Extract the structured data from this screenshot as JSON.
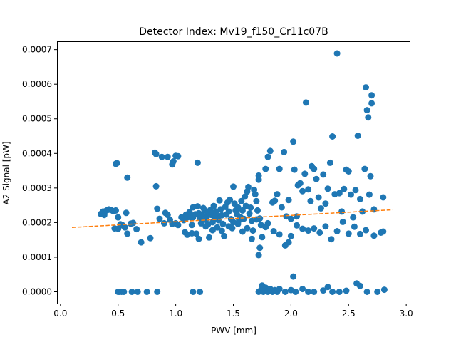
{
  "chart_data": {
    "type": "scatter",
    "title": "Detector Index: Mv19_f150_Cr11c07B",
    "xlabel": "PWV [mm]",
    "ylabel": "A2 Signal [pW]",
    "xlim": [
      -0.03,
      3.03
    ],
    "ylim": [
      -3.4e-05,
      0.000724
    ],
    "x_ticks": [
      "0.0",
      "0.5",
      "1.0",
      "1.5",
      "2.0",
      "2.5",
      "3.0"
    ],
    "y_ticks": [
      "0.0000",
      "0.0001",
      "0.0002",
      "0.0003",
      "0.0004",
      "0.0005",
      "0.0006",
      "0.0007"
    ],
    "grid": false,
    "colors": {
      "points": "#1f77b4",
      "fit": "#ff7f0e"
    },
    "series": [
      {
        "type": "scatter",
        "points": [
          [
            0.48,
            0.00037
          ],
          [
            0.49,
            0.000372
          ],
          [
            0.58,
            0.00033
          ],
          [
            0.82,
            0.000402
          ],
          [
            0.83,
            0.000398
          ],
          [
            0.88,
            0.00039
          ],
          [
            0.93,
            0.00039
          ],
          [
            0.97,
            0.000368
          ],
          [
            1.0,
            0.000393
          ],
          [
            1.02,
            0.000392
          ],
          [
            0.98,
            0.000377
          ],
          [
            1.19,
            0.000373
          ],
          [
            0.83,
            0.000305
          ],
          [
            0.35,
            0.000225
          ],
          [
            0.37,
            0.000232
          ],
          [
            0.38,
            0.000222
          ],
          [
            0.4,
            0.000235
          ],
          [
            0.42,
            0.000238
          ],
          [
            0.44,
            0.000236
          ],
          [
            0.46,
            0.000233
          ],
          [
            0.48,
            0.000235
          ],
          [
            0.5,
            0.000215
          ],
          [
            0.47,
            0.000183
          ],
          [
            0.5,
            0.000182
          ],
          [
            0.52,
            0.000195
          ],
          [
            0.54,
            0.000192
          ],
          [
            0.56,
            0.000186
          ],
          [
            0.57,
            0.000228
          ],
          [
            0.58,
            0.000168
          ],
          [
            0.61,
            0.000197
          ],
          [
            0.63,
            0.000199
          ],
          [
            0.66,
            0.000181
          ],
          [
            0.7,
            0.000143
          ],
          [
            0.78,
            0.000155
          ],
          [
            0.84,
            0.00024
          ],
          [
            0.86,
            0.000211
          ],
          [
            0.9,
            0.000198
          ],
          [
            0.91,
            0.000228
          ],
          [
            0.93,
            0.000222
          ],
          [
            0.95,
            0.000208
          ],
          [
            0.97,
            0.000196
          ],
          [
            1.0,
            0.000198
          ],
          [
            1.02,
            0.000193
          ],
          [
            0.5,
            0.0
          ],
          [
            0.51,
            0.0
          ],
          [
            0.53,
            0.0
          ],
          [
            0.55,
            0.0
          ],
          [
            0.62,
            0.0
          ],
          [
            0.67,
            0.0
          ],
          [
            0.75,
            0.0
          ],
          [
            0.84,
            0.0
          ],
          [
            1.15,
            0.0
          ],
          [
            1.21,
            0.0
          ],
          [
            1.05,
            0.000215
          ],
          [
            1.07,
            0.000207
          ],
          [
            1.09,
            0.000223
          ],
          [
            1.1,
            0.000215
          ],
          [
            1.1,
            0.000165
          ],
          [
            1.12,
            0.00023
          ],
          [
            1.13,
            0.000215
          ],
          [
            1.14,
            0.000193
          ],
          [
            1.15,
            0.000244
          ],
          [
            1.15,
            0.000215
          ],
          [
            1.17,
            0.000224
          ],
          [
            1.18,
            0.000168
          ],
          [
            1.19,
            0.000247
          ],
          [
            1.2,
            0.000227
          ],
          [
            1.21,
            0.000213
          ],
          [
            1.22,
            0.000198
          ],
          [
            1.23,
            0.000222
          ],
          [
            1.24,
            0.000242
          ],
          [
            1.25,
            0.000235
          ],
          [
            1.26,
            0.000208
          ],
          [
            1.27,
            0.000217
          ],
          [
            1.28,
            0.00023
          ],
          [
            1.28,
            0.000195
          ],
          [
            1.29,
            0.000157
          ],
          [
            1.3,
            0.000236
          ],
          [
            1.31,
            0.000222
          ],
          [
            1.32,
            0.000201
          ],
          [
            1.33,
            0.000248
          ],
          [
            1.34,
            0.000213
          ],
          [
            1.35,
            0.000232
          ],
          [
            1.36,
            0.000219
          ],
          [
            1.37,
            0.000207
          ],
          [
            1.38,
            0.000264
          ],
          [
            1.39,
            0.000238
          ],
          [
            1.4,
            0.000221
          ],
          [
            1.41,
            0.000196
          ],
          [
            1.42,
            0.000161
          ],
          [
            1.43,
            0.000245
          ],
          [
            1.44,
            0.000223
          ],
          [
            1.45,
            0.000258
          ],
          [
            1.46,
            0.000232
          ],
          [
            1.47,
            0.000266
          ],
          [
            1.48,
            0.00021
          ],
          [
            1.49,
            0.000184
          ],
          [
            1.5,
            0.000304
          ],
          [
            1.51,
            0.000255
          ],
          [
            1.52,
            0.000235
          ],
          [
            1.53,
            0.000225
          ],
          [
            1.54,
            0.000244
          ],
          [
            1.55,
            0.000207
          ],
          [
            1.56,
            0.000216
          ],
          [
            1.57,
            0.000262
          ],
          [
            1.58,
            0.000235
          ],
          [
            1.59,
            0.000211
          ],
          [
            1.6,
            0.000275
          ],
          [
            1.61,
            0.000248
          ],
          [
            1.62,
            0.00029
          ],
          [
            1.63,
            0.000303
          ],
          [
            1.64,
            0.000226
          ],
          [
            1.65,
            0.000243
          ],
          [
            1.66,
            0.000205
          ],
          [
            1.67,
            0.000177
          ],
          [
            1.68,
            0.000295
          ],
          [
            1.69,
            0.000282
          ],
          [
            1.7,
            0.000262
          ],
          [
            1.71,
            0.000235
          ],
          [
            1.72,
            0.000324
          ],
          [
            1.72,
            0.000336
          ],
          [
            1.73,
            0.000212
          ],
          [
            1.74,
            0.000193
          ],
          [
            1.75,
            0.000158
          ],
          [
            1.72,
            0.000106
          ],
          [
            1.73,
            0.000127
          ],
          [
            1.78,
            0.000355
          ],
          [
            1.8,
            0.00039
          ],
          [
            1.82,
            0.000407
          ],
          [
            1.84,
            0.000258
          ],
          [
            1.86,
            0.000263
          ],
          [
            1.88,
            0.000282
          ],
          [
            1.9,
            0.000355
          ],
          [
            1.92,
            0.000244
          ],
          [
            1.94,
            0.000404
          ],
          [
            1.96,
            0.000218
          ],
          [
            1.98,
            0.000265
          ],
          [
            2.0,
            0.000211
          ],
          [
            2.02,
            0.000434
          ],
          [
            2.03,
            0.000353
          ],
          [
            2.05,
            0.000218
          ],
          [
            2.06,
            0.000308
          ],
          [
            2.08,
            0.000314
          ],
          [
            2.1,
            0.000291
          ],
          [
            2.12,
            0.000341
          ],
          [
            2.13,
            0.000547
          ],
          [
            2.15,
            0.000296
          ],
          [
            2.17,
            0.000262
          ],
          [
            2.18,
            0.000363
          ],
          [
            2.2,
            0.000355
          ],
          [
            2.22,
            0.000326
          ],
          [
            2.24,
            0.000273
          ],
          [
            2.26,
            0.000241
          ],
          [
            2.28,
            0.000339
          ],
          [
            2.3,
            0.000255
          ],
          [
            2.32,
            0.000298
          ],
          [
            2.34,
            0.000373
          ],
          [
            2.36,
            0.000449
          ],
          [
            2.38,
            0.000282
          ],
          [
            2.4,
            0.000689
          ],
          [
            2.42,
            0.000285
          ],
          [
            2.44,
            0.000232
          ],
          [
            2.46,
            0.000297
          ],
          [
            2.48,
            0.000353
          ],
          [
            2.5,
            0.000348
          ],
          [
            2.52,
            0.000281
          ],
          [
            2.54,
            0.000215
          ],
          [
            2.56,
            0.000294
          ],
          [
            2.58,
            0.000451
          ],
          [
            2.6,
            0.000268
          ],
          [
            2.62,
            0.000232
          ],
          [
            2.64,
            0.000355
          ],
          [
            2.65,
            0.000591
          ],
          [
            2.66,
            0.000525
          ],
          [
            2.67,
            0.000504
          ],
          [
            2.68,
            0.000281
          ],
          [
            2.69,
            0.000334
          ],
          [
            2.7,
            0.000568
          ],
          [
            2.7,
            0.000545
          ],
          [
            2.72,
            0.000238
          ],
          [
            2.8,
            0.000273
          ],
          [
            2.8,
            0.000174
          ],
          [
            2.78,
            0.000171
          ],
          [
            2.72,
            0.000162
          ],
          [
            2.65,
            0.000178
          ],
          [
            2.6,
            0.000167
          ],
          [
            2.55,
            0.000188
          ],
          [
            2.5,
            0.000168
          ],
          [
            2.45,
            0.000202
          ],
          [
            2.4,
            0.000175
          ],
          [
            2.35,
            0.000152
          ],
          [
            2.3,
            0.000189
          ],
          [
            2.25,
            0.000171
          ],
          [
            2.2,
            0.000183
          ],
          [
            2.15,
            0.000177
          ],
          [
            2.1,
            0.000182
          ],
          [
            2.05,
            0.000192
          ],
          [
            2.0,
            0.000161
          ],
          [
            1.98,
            0.000143
          ],
          [
            1.95,
            0.000134
          ],
          [
            1.9,
            0.000166
          ],
          [
            1.85,
            0.000175
          ],
          [
            1.8,
            0.000198
          ],
          [
            1.78,
            0.000187
          ],
          [
            1.7,
            0.000209
          ],
          [
            1.66,
            0.000153
          ],
          [
            1.62,
            0.000184
          ],
          [
            1.58,
            0.000174
          ],
          [
            1.54,
            0.000196
          ],
          [
            1.5,
            0.000201
          ],
          [
            1.46,
            0.000189
          ],
          [
            1.4,
            0.000176
          ],
          [
            1.36,
            0.000186
          ],
          [
            1.32,
            0.000178
          ],
          [
            1.26,
            0.000189
          ],
          [
            1.2,
            0.000153
          ],
          [
            1.14,
            0.000169
          ],
          [
            1.08,
            0.000172
          ],
          [
            1.72,
            0.0
          ],
          [
            1.74,
            5e-06
          ],
          [
            1.75,
            1.8e-05
          ],
          [
            1.76,
            0.0
          ],
          [
            1.78,
            1.2e-05
          ],
          [
            1.8,
            0.0
          ],
          [
            1.82,
            8e-06
          ],
          [
            1.84,
            0.0
          ],
          [
            1.86,
            5e-06
          ],
          [
            1.88,
            0.0
          ],
          [
            1.9,
            8e-06
          ],
          [
            1.95,
            0.0
          ],
          [
            2.0,
            5e-06
          ],
          [
            2.02,
            4.4e-05
          ],
          [
            2.04,
            0.0
          ],
          [
            2.1,
            8e-06
          ],
          [
            2.15,
            0.0
          ],
          [
            2.2,
            0.0
          ],
          [
            2.28,
            4e-06
          ],
          [
            2.32,
            1.4e-05
          ],
          [
            2.36,
            0.0
          ],
          [
            2.42,
            0.0
          ],
          [
            2.48,
            3e-06
          ],
          [
            2.57,
            2.4e-05
          ],
          [
            2.6,
            1.7e-05
          ],
          [
            2.66,
            0.0
          ],
          [
            2.75,
            0.0
          ],
          [
            2.81,
            6e-06
          ]
        ]
      },
      {
        "type": "line",
        "style": "dashed",
        "points": [
          [
            0.1,
            0.000186
          ],
          [
            2.88,
            0.000237
          ]
        ]
      }
    ]
  }
}
